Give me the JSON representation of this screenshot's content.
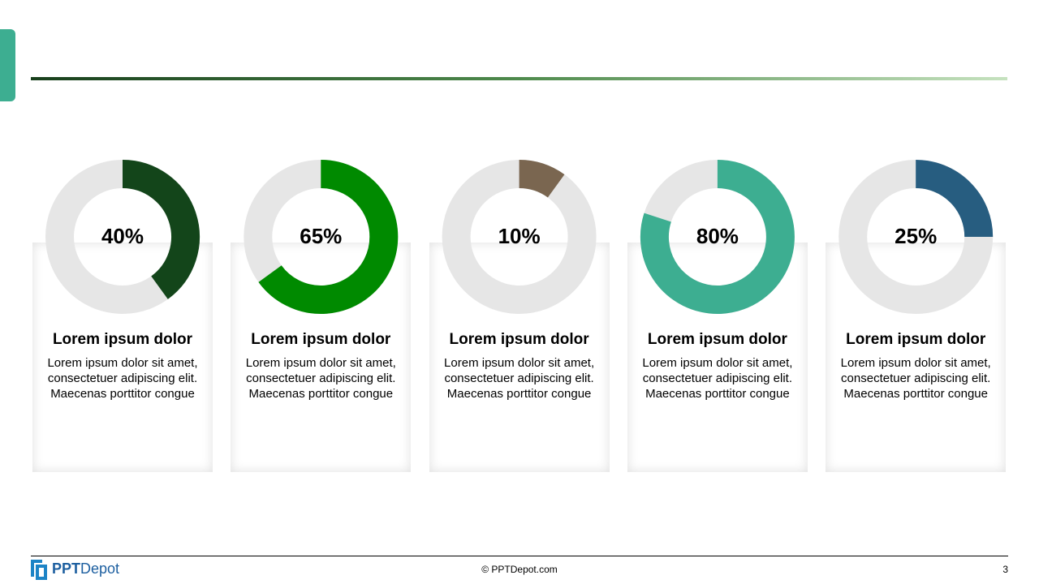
{
  "chart_data": [
    {
      "type": "donut",
      "title": "Lorem ipsum dolor",
      "description": [
        "Lorem ipsum dolor sit amet,",
        "consectetuer adipiscing elit.",
        "Maecenas porttitor congue"
      ],
      "values": [
        40
      ],
      "value_labels": [
        "40%"
      ],
      "color": "#13451a",
      "track_color": "#e6e6e6"
    },
    {
      "type": "donut",
      "title": "Lorem ipsum dolor",
      "description": [
        "Lorem ipsum dolor sit amet,",
        "consectetuer adipiscing elit.",
        "Maecenas porttitor congue"
      ],
      "values": [
        65
      ],
      "value_labels": [
        "65%"
      ],
      "color": "#008a00",
      "track_color": "#e6e6e6"
    },
    {
      "type": "donut",
      "title": "Lorem ipsum dolor",
      "description": [
        "Lorem ipsum dolor sit amet,",
        "consectetuer adipiscing elit.",
        "Maecenas porttitor congue"
      ],
      "values": [
        10
      ],
      "value_labels": [
        "10%"
      ],
      "color": "#7a6650",
      "track_color": "#e6e6e6"
    },
    {
      "type": "donut",
      "title": "Lorem ipsum dolor",
      "description": [
        "Lorem ipsum dolor sit amet,",
        "consectetuer adipiscing elit.",
        "Maecenas porttitor congue"
      ],
      "values": [
        80
      ],
      "value_labels": [
        "80%"
      ],
      "color": "#3dae91",
      "track_color": "#e6e6e6"
    },
    {
      "type": "donut",
      "title": "Lorem ipsum dolor",
      "description": [
        "Lorem ipsum dolor sit amet,",
        "consectetuer adipiscing elit.",
        "Maecenas porttitor congue"
      ],
      "values": [
        25
      ],
      "value_labels": [
        "25%"
      ],
      "color": "#275d80",
      "track_color": "#e6e6e6"
    }
  ],
  "footer": {
    "brand_bold": "PPT",
    "brand_light": "Depot",
    "copyright": "© PPTDepot.com",
    "page": 3
  }
}
